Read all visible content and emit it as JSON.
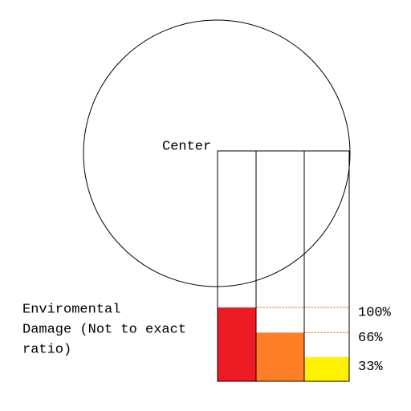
{
  "chart_data": {
    "type": "bar",
    "center_label": "Center",
    "note_lines": [
      "Enviromental",
      "Damage (Not to exact",
      "ratio)"
    ],
    "categories": [
      null,
      null,
      null
    ],
    "values": [
      100,
      66,
      33
    ],
    "value_labels": [
      "100%",
      "66%",
      "33%"
    ],
    "colors": [
      "#ed1c24",
      "#ff7f27",
      "#fff200"
    ],
    "ylim": [
      0,
      100
    ]
  }
}
